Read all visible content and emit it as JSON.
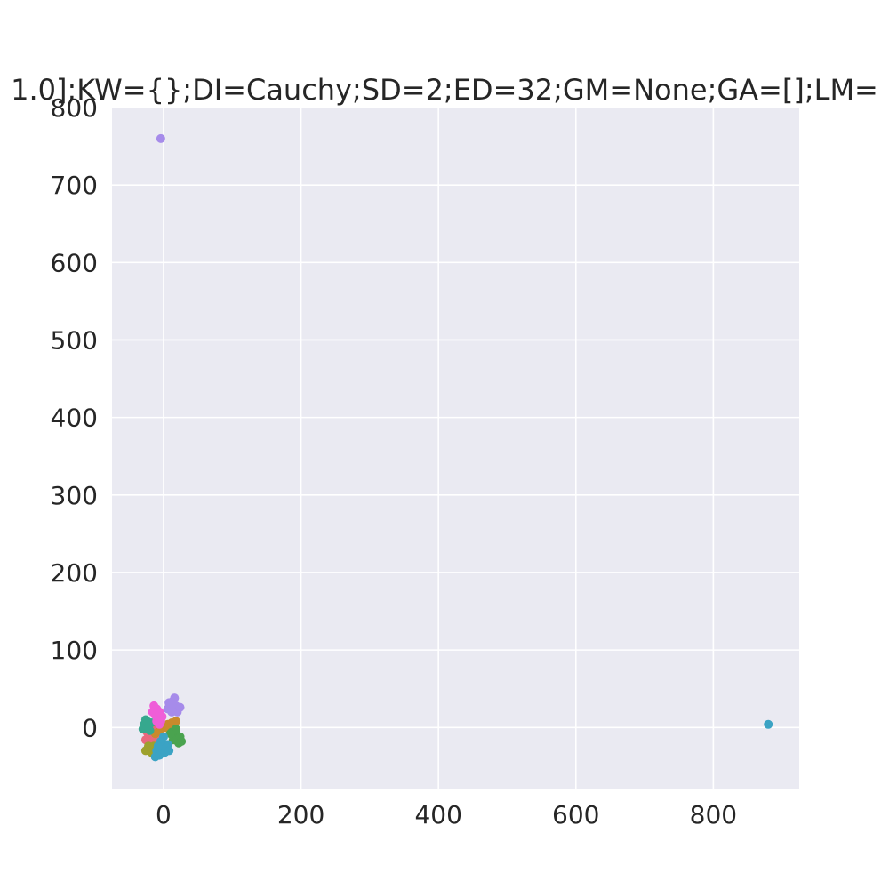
{
  "chart_data": {
    "type": "scatter",
    "title": "1.0];KW={};DI=Cauchy;SD=2;ED=32;GM=None;GA=[];LM=",
    "xlabel": "",
    "ylabel": "",
    "xlim": [
      -75,
      925
    ],
    "ylim": [
      -80,
      800
    ],
    "xticks": [
      0,
      200,
      400,
      600,
      800
    ],
    "yticks": [
      0,
      100,
      200,
      300,
      400,
      500,
      600,
      700,
      800
    ],
    "grid": true,
    "background": "#eaeaf2",
    "grid_color": "#ffffff",
    "series": [
      {
        "color": "#e8697d",
        "points": [
          [
            -26,
            -16
          ],
          [
            -22,
            -12
          ],
          [
            -18,
            -18
          ],
          [
            -14,
            -10
          ],
          [
            -20,
            -22
          ],
          [
            -10,
            -14
          ],
          [
            -24,
            -6
          ],
          [
            -16,
            -2
          ]
        ]
      },
      {
        "color": "#c98a2c",
        "points": [
          [
            -12,
            -8
          ],
          [
            -6,
            -4
          ],
          [
            2,
            0
          ],
          [
            6,
            4
          ],
          [
            12,
            6
          ],
          [
            18,
            8
          ],
          [
            -2,
            2
          ],
          [
            8,
            -2
          ],
          [
            14,
            2
          ]
        ]
      },
      {
        "color": "#9ea12c",
        "points": [
          [
            -26,
            -30
          ],
          [
            -20,
            -28
          ],
          [
            -14,
            -24
          ],
          [
            -18,
            -32
          ],
          [
            -10,
            -26
          ],
          [
            -4,
            -20
          ],
          [
            -22,
            -24
          ]
        ]
      },
      {
        "color": "#4aa34f",
        "points": [
          [
            12,
            -6
          ],
          [
            16,
            -10
          ],
          [
            18,
            -4
          ],
          [
            20,
            -14
          ],
          [
            22,
            -20
          ],
          [
            24,
            -12
          ],
          [
            26,
            -18
          ],
          [
            14,
            -16
          ],
          [
            18,
            -2
          ],
          [
            10,
            -8
          ]
        ]
      },
      {
        "color": "#36a88e",
        "points": [
          [
            -28,
            4
          ],
          [
            -24,
            8
          ],
          [
            -30,
            -2
          ],
          [
            -22,
            0
          ],
          [
            -26,
            10
          ],
          [
            -18,
            6
          ],
          [
            -20,
            -4
          ]
        ]
      },
      {
        "color": "#3ba3c4",
        "points": [
          [
            -10,
            -30
          ],
          [
            -6,
            -36
          ],
          [
            -2,
            -28
          ],
          [
            2,
            -32
          ],
          [
            6,
            -22
          ],
          [
            -4,
            -18
          ],
          [
            0,
            -12
          ],
          [
            4,
            -26
          ],
          [
            -12,
            -38
          ],
          [
            8,
            -30
          ],
          [
            -8,
            -24
          ],
          [
            880,
            4
          ]
        ]
      },
      {
        "color": "#a68bea",
        "points": [
          [
            6,
            24
          ],
          [
            10,
            30
          ],
          [
            14,
            34
          ],
          [
            18,
            28
          ],
          [
            20,
            20
          ],
          [
            24,
            26
          ],
          [
            16,
            38
          ],
          [
            8,
            32
          ],
          [
            12,
            20
          ],
          [
            -4,
            760
          ]
        ]
      },
      {
        "color": "#ef5ed8",
        "points": [
          [
            -14,
            28
          ],
          [
            -10,
            24
          ],
          [
            -6,
            20
          ],
          [
            -12,
            16
          ],
          [
            -8,
            12
          ],
          [
            -4,
            8
          ],
          [
            -16,
            20
          ],
          [
            -2,
            14
          ],
          [
            -10,
            8
          ],
          [
            -6,
            4
          ]
        ]
      }
    ]
  }
}
